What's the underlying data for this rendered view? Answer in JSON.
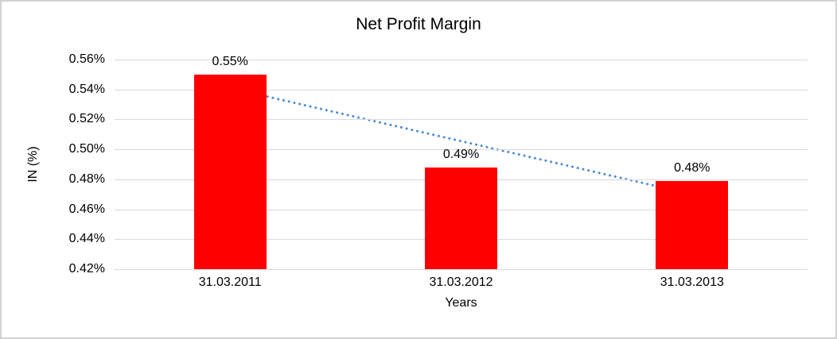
{
  "frame": {
    "border_color": "#d2d2d2",
    "background_color": "#ffffff"
  },
  "chart_data": {
    "type": "bar",
    "title": "Net Profit Margin",
    "xlabel": "Years",
    "ylabel": "IN (%)",
    "categories": [
      "31.03.2011",
      "31.03.2012",
      "31.03.2013"
    ],
    "values": [
      0.55,
      0.488,
      0.479
    ],
    "data_labels": [
      "0.55%",
      "0.49%",
      "0.48%"
    ],
    "ytick_labels": [
      "0.56%",
      "0.54%",
      "0.52%",
      "0.50%",
      "0.48%",
      "0.46%",
      "0.44%",
      "0.42%"
    ],
    "ylim": [
      0.42,
      0.56
    ],
    "ytick_step": 0.02,
    "grid": true,
    "legend": "none",
    "bar_color": "#ff0000",
    "gridline_color": "#d9d9d9",
    "text_color": "#000000",
    "trendline": {
      "type": "linear",
      "style": "dotted",
      "color": "#4a8bd4",
      "start_value": 0.541,
      "end_value": 0.47
    }
  }
}
